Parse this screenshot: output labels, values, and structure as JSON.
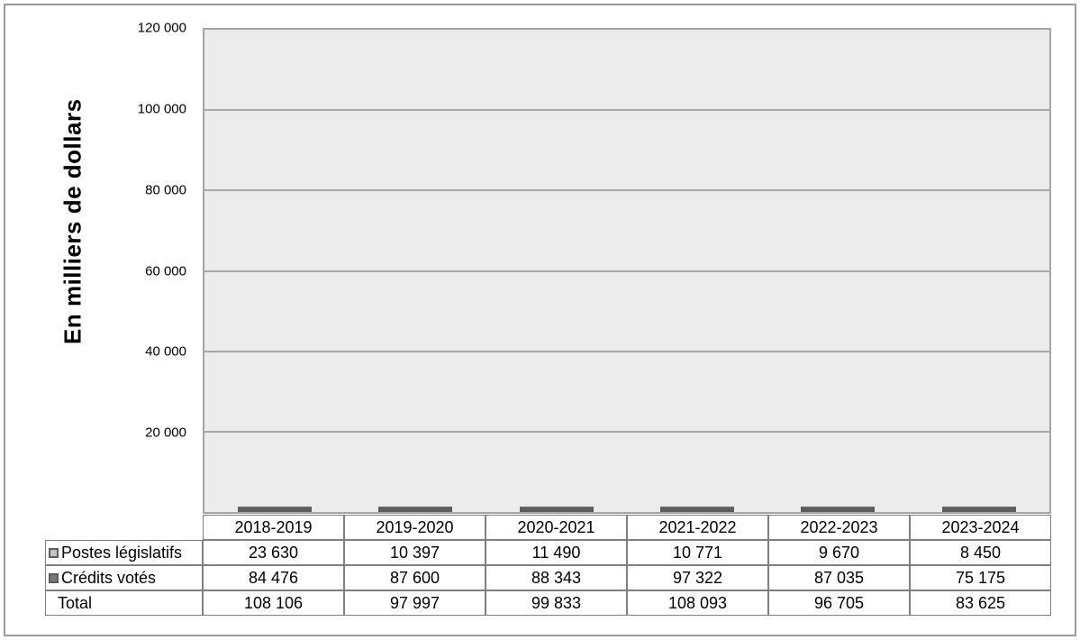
{
  "chart_data": {
    "type": "bar",
    "stacked": true,
    "title": "",
    "xlabel": "",
    "ylabel": "En milliers de dollars",
    "ylim": [
      0,
      120000
    ],
    "grid": true,
    "legend_position": "table-left-column",
    "plot_bg_color": "#ebebeb",
    "gridline_color": "#a6a6a6",
    "yticks": [
      {
        "value": 120000,
        "label": "120 000"
      },
      {
        "value": 100000,
        "label": "100 000"
      },
      {
        "value": 80000,
        "label": "80 000"
      },
      {
        "value": 60000,
        "label": "60 000"
      },
      {
        "value": 40000,
        "label": "40 000"
      },
      {
        "value": 20000,
        "label": "20 000"
      }
    ],
    "categories": [
      "2018-2019",
      "2019-2020",
      "2020-2021",
      "2021-2022",
      "2022-2023",
      "2023-2024"
    ],
    "series": [
      {
        "name": "Crédits votés",
        "color": "#787878",
        "values": [
          84476,
          87600,
          88343,
          97322,
          87035,
          75175
        ]
      },
      {
        "name": "Postes législatifs",
        "color": "#c2c2c2",
        "values": [
          23630,
          10397,
          11490,
          10771,
          9670,
          8450
        ]
      }
    ],
    "totals": [
      108106,
      97997,
      99833,
      108093,
      96705,
      83625
    ]
  },
  "table": {
    "header": [
      "2018-2019",
      "2019-2020",
      "2020-2021",
      "2021-2022",
      "2022-2023",
      "2023-2024"
    ],
    "rows": [
      {
        "label": "Postes législatifs",
        "marker_fill": "#c2c2c2",
        "values": [
          "23 630",
          "10 397",
          "11 490",
          "10 771",
          "9 670",
          "8 450"
        ]
      },
      {
        "label": "Crédits votés",
        "marker_fill": "#787878",
        "values": [
          "84 476",
          "87 600",
          "88 343",
          "97 322",
          "87 035",
          "75 175"
        ]
      },
      {
        "label": "Total",
        "marker_fill": null,
        "values": [
          "108 106",
          "97 997",
          "99 833",
          "108 093",
          "96 705",
          "83 625"
        ]
      }
    ]
  }
}
